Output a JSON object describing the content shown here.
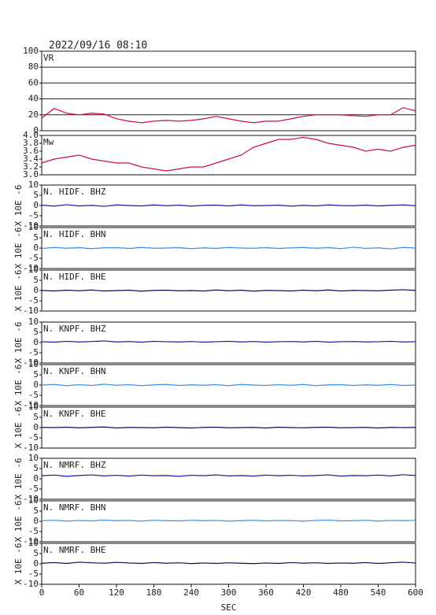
{
  "chart_data": [
    {
      "type": "line",
      "title": "2022/09/16  08:10",
      "x": [
        0,
        20,
        40,
        60,
        80,
        100,
        120,
        140,
        160,
        180,
        200,
        220,
        240,
        260,
        280,
        300,
        320,
        340,
        360,
        380,
        400,
        420,
        440,
        460,
        480,
        500,
        520,
        540,
        560,
        580,
        600
      ],
      "series": [
        {
          "name": "VR",
          "color": "#d0103a",
          "values": [
            16,
            28,
            22,
            20,
            22,
            21,
            15,
            12,
            10,
            12,
            13,
            12,
            13,
            15,
            18,
            15,
            12,
            10,
            12,
            12,
            15,
            18,
            20,
            20,
            20,
            19,
            18,
            20,
            20,
            29,
            25
          ]
        }
      ],
      "ylim": [
        0,
        100
      ],
      "yticks": [
        0,
        20,
        40,
        60,
        80,
        100
      ],
      "grid": true
    },
    {
      "type": "line",
      "x": [
        0,
        20,
        40,
        60,
        80,
        100,
        120,
        140,
        160,
        180,
        200,
        220,
        240,
        260,
        280,
        300,
        320,
        340,
        360,
        380,
        400,
        420,
        440,
        460,
        480,
        500,
        520,
        540,
        560,
        580,
        600
      ],
      "series": [
        {
          "name": "Mw",
          "color": "#d0103a",
          "values": [
            3.3,
            3.4,
            3.45,
            3.5,
            3.4,
            3.35,
            3.3,
            3.3,
            3.2,
            3.15,
            3.1,
            3.15,
            3.2,
            3.2,
            3.3,
            3.4,
            3.5,
            3.7,
            3.8,
            3.9,
            3.9,
            3.95,
            3.9,
            3.8,
            3.75,
            3.7,
            3.6,
            3.65,
            3.6,
            3.7,
            3.75
          ]
        }
      ],
      "ylim": [
        3.0,
        4.0
      ],
      "yticks": [
        {
          "value": 3,
          "label": "3.0"
        },
        3.2,
        3.4,
        3.6,
        3.8,
        {
          "value": 4,
          "label": "4.0"
        }
      ],
      "grid": false
    },
    {
      "type": "line",
      "ylabel": "X 10E -6",
      "x": [
        0,
        20,
        40,
        60,
        80,
        100,
        120,
        140,
        160,
        180,
        200,
        220,
        240,
        260,
        280,
        300,
        320,
        340,
        360,
        380,
        400,
        420,
        440,
        460,
        480,
        500,
        520,
        540,
        560,
        580,
        600
      ],
      "series": [
        {
          "name": "N. HIDF. BHZ",
          "color": "#1a1aa0",
          "values": [
            0.2,
            -0.3,
            0.4,
            -0.2,
            0.1,
            -0.4,
            0.3,
            0,
            -0.2,
            0.3,
            -0.1,
            0.2,
            -0.3,
            0.1,
            0.2,
            -0.2,
            0.3,
            -0.1,
            0,
            0.2,
            -0.3,
            0.1,
            -0.2,
            0.3,
            0,
            -0.1,
            0.2,
            -0.2,
            0.1,
            0.3,
            -0.1
          ]
        }
      ],
      "ylim": [
        -10,
        10
      ],
      "yticks": [
        -10,
        -5,
        0,
        5,
        10
      ]
    },
    {
      "type": "line",
      "ylabel": "X 10E -6",
      "x": [
        0,
        20,
        40,
        60,
        80,
        100,
        120,
        140,
        160,
        180,
        200,
        220,
        240,
        260,
        280,
        300,
        320,
        340,
        360,
        380,
        400,
        420,
        440,
        460,
        480,
        500,
        520,
        540,
        560,
        580,
        600
      ],
      "series": [
        {
          "name": "N. HIDF. BHN",
          "color": "#3a8fe0",
          "values": [
            -0.2,
            0.3,
            -0.1,
            0.2,
            -0.3,
            0.1,
            0.2,
            -0.2,
            0.3,
            -0.1,
            0,
            0.2,
            -0.3,
            0.1,
            -0.2,
            0.3,
            0,
            -0.1,
            0.2,
            -0.2,
            0.1,
            0.3,
            -0.1,
            0.2,
            -0.3,
            0.4,
            -0.2,
            0.1,
            -0.4,
            0.3,
            0
          ]
        }
      ],
      "ylim": [
        -10,
        10
      ],
      "yticks": [
        -10,
        -5,
        0,
        5,
        10
      ]
    },
    {
      "type": "line",
      "ylabel": "X 10E -6",
      "x": [
        0,
        20,
        40,
        60,
        80,
        100,
        120,
        140,
        160,
        180,
        200,
        220,
        240,
        260,
        280,
        300,
        320,
        340,
        360,
        380,
        400,
        420,
        440,
        460,
        480,
        500,
        520,
        540,
        560,
        580,
        600
      ],
      "series": [
        {
          "name": "N. HIDF. BHE",
          "color": "#101050",
          "values": [
            0.1,
            -0.2,
            0.2,
            -0.1,
            0.3,
            -0.2,
            0,
            0.2,
            -0.3,
            0.1,
            0.2,
            -0.1,
            0,
            -0.2,
            0.3,
            -0.1,
            0.2,
            -0.3,
            0.1,
            0,
            -0.2,
            0.2,
            -0.1,
            0.3,
            -0.2,
            0.1,
            0,
            -0.1,
            0.2,
            0.4,
            0.1
          ]
        }
      ],
      "ylim": [
        -10,
        10
      ],
      "yticks": [
        -10,
        -5,
        0,
        5,
        10
      ]
    },
    {
      "type": "line",
      "ylabel": "X 10E -6",
      "x": [
        0,
        20,
        40,
        60,
        80,
        100,
        120,
        140,
        160,
        180,
        200,
        220,
        240,
        260,
        280,
        300,
        320,
        340,
        360,
        380,
        400,
        420,
        440,
        460,
        480,
        500,
        520,
        540,
        560,
        580,
        600
      ],
      "series": [
        {
          "name": "N. KNPF. BHZ",
          "color": "#1a1aa0",
          "values": [
            0.4,
            0.2,
            0.6,
            0.3,
            0.5,
            0.8,
            0.3,
            0.5,
            0.2,
            0.6,
            0.4,
            0.3,
            0.5,
            0.2,
            0.4,
            0.6,
            0.3,
            0.5,
            0.2,
            0.4,
            0.5,
            0.3,
            0.6,
            0.2,
            0.4,
            0.5,
            0.3,
            0.4,
            0.6,
            0.3,
            0.4
          ]
        }
      ],
      "ylim": [
        -10,
        10
      ],
      "yticks": [
        -10,
        -5,
        0,
        5,
        10
      ]
    },
    {
      "type": "line",
      "ylabel": "X 10E -6",
      "x": [
        0,
        20,
        40,
        60,
        80,
        100,
        120,
        140,
        160,
        180,
        200,
        220,
        240,
        260,
        280,
        300,
        320,
        340,
        360,
        380,
        400,
        420,
        440,
        460,
        480,
        500,
        520,
        540,
        560,
        580,
        600
      ],
      "series": [
        {
          "name": "N. KNPF. BHN",
          "color": "#3a8fe0",
          "values": [
            0,
            0.3,
            -0.3,
            0.2,
            -0.2,
            0.4,
            -0.1,
            0.2,
            -0.3,
            0.1,
            0.3,
            -0.2,
            0.1,
            -0.1,
            0.2,
            -0.3,
            0.3,
            0,
            -0.2,
            0.2,
            -0.1,
            0.3,
            -0.3,
            0.1,
            0.2,
            -0.2,
            0.1,
            -0.1,
            0.3,
            -0.2,
            0
          ]
        }
      ],
      "ylim": [
        -10,
        10
      ],
      "yticks": [
        -10,
        -5,
        0,
        5,
        10
      ]
    },
    {
      "type": "line",
      "ylabel": "X 10E -6",
      "x": [
        0,
        20,
        40,
        60,
        80,
        100,
        120,
        140,
        160,
        180,
        200,
        220,
        240,
        260,
        280,
        300,
        320,
        340,
        360,
        380,
        400,
        420,
        440,
        460,
        480,
        500,
        520,
        540,
        560,
        580,
        600
      ],
      "series": [
        {
          "name": "N. KNPF. BHE",
          "color": "#101050",
          "values": [
            0.1,
            0,
            0.2,
            -0.1,
            0.1,
            0.3,
            -0.2,
            0.1,
            0,
            -0.1,
            0.2,
            0,
            -0.2,
            0.1,
            0.2,
            -0.1,
            0,
            0.1,
            -0.2,
            0.2,
            0,
            -0.1,
            0.1,
            0.2,
            -0.1,
            0,
            0.1,
            -0.2,
            0.1,
            0,
            0.1
          ]
        }
      ],
      "ylim": [
        -10,
        10
      ],
      "yticks": [
        -10,
        -5,
        0,
        5,
        10
      ]
    },
    {
      "type": "line",
      "ylabel": "X 10E -6",
      "x": [
        0,
        20,
        40,
        60,
        80,
        100,
        120,
        140,
        160,
        180,
        200,
        220,
        240,
        260,
        280,
        300,
        320,
        340,
        360,
        380,
        400,
        420,
        440,
        460,
        480,
        500,
        520,
        540,
        560,
        580,
        600
      ],
      "series": [
        {
          "name": "N. NMRF. BHZ",
          "color": "#1a1aa0",
          "values": [
            1.5,
            1.8,
            1.2,
            1.6,
            1.9,
            1.4,
            1.7,
            1.3,
            1.8,
            1.5,
            1.6,
            1.2,
            1.7,
            1.5,
            1.9,
            1.4,
            1.6,
            1.3,
            1.8,
            1.5,
            1.7,
            1.4,
            1.6,
            1.9,
            1.3,
            1.6,
            1.5,
            1.8,
            1.4,
            2.0,
            1.6
          ]
        }
      ],
      "ylim": [
        -10,
        10
      ],
      "yticks": [
        -10,
        -5,
        0,
        5,
        10
      ]
    },
    {
      "type": "line",
      "ylabel": "X 10E -6",
      "x": [
        0,
        20,
        40,
        60,
        80,
        100,
        120,
        140,
        160,
        180,
        200,
        220,
        240,
        260,
        280,
        300,
        320,
        340,
        360,
        380,
        400,
        420,
        440,
        460,
        480,
        500,
        520,
        540,
        560,
        580,
        600
      ],
      "series": [
        {
          "name": "N. NMRF. BHN",
          "color": "#3a8fe0",
          "values": [
            0.3,
            0.5,
            0.1,
            0.4,
            0.2,
            0.6,
            0.3,
            0.4,
            0.1,
            0.5,
            0.3,
            0.2,
            0.5,
            0.3,
            0.4,
            0.1,
            0.3,
            0.5,
            0.2,
            0.4,
            0.3,
            0.1,
            0.4,
            0.6,
            0.2,
            0.3,
            0.5,
            0.1,
            0.4,
            0.3,
            0.5
          ]
        }
      ],
      "ylim": [
        -10,
        10
      ],
      "yticks": [
        -10,
        -5,
        0,
        5,
        10
      ]
    },
    {
      "type": "line",
      "ylabel": "X 10E -6",
      "x": [
        0,
        20,
        40,
        60,
        80,
        100,
        120,
        140,
        160,
        180,
        200,
        220,
        240,
        260,
        280,
        300,
        320,
        340,
        360,
        380,
        400,
        420,
        440,
        460,
        480,
        500,
        520,
        540,
        560,
        580,
        600
      ],
      "series": [
        {
          "name": "N. NMRF. BHE",
          "color": "#101050",
          "values": [
            0.3,
            0.6,
            0.2,
            0.8,
            0.5,
            0.3,
            0.7,
            0.4,
            0.2,
            0.6,
            0.3,
            0.5,
            0.1,
            0.4,
            0.2,
            0.5,
            0.3,
            0.1,
            0.4,
            0.2,
            0.6,
            0.3,
            0.5,
            0.2,
            0.4,
            0.3,
            0.6,
            0.2,
            0.5,
            0.8,
            0.4
          ]
        }
      ],
      "ylim": [
        -10,
        10
      ],
      "yticks": [
        -10,
        -5,
        0,
        5,
        10
      ],
      "xlim": [
        0,
        600
      ],
      "xticks": [
        0,
        60,
        120,
        180,
        240,
        300,
        360,
        420,
        480,
        540,
        600
      ],
      "xlabel": "SEC"
    }
  ]
}
